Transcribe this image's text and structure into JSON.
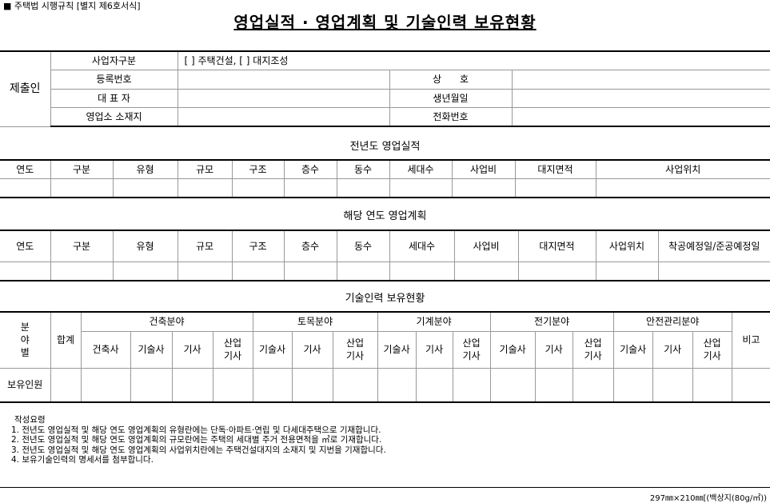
{
  "form_label": "■ 주택법 시행규칙 [별지 제6호서식]",
  "title": "영업실적 · 영업계획 및 기술인력 보유현황",
  "submitter": {
    "label": "제출인",
    "business_type_label": "사업자구분",
    "business_type_value": "[   ] 주택건설, [   ] 대지조성",
    "reg_no_label": "등록번호",
    "trade_name_label": "상      호",
    "representative_label": "대 표 자",
    "birthdate_label": "생년월일",
    "office_label": "영업소 소재지",
    "phone_label": "전화번호"
  },
  "prev_year": {
    "title": "전년도 영업실적",
    "headers": [
      "연도",
      "구분",
      "유형",
      "규모",
      "구조",
      "층수",
      "동수",
      "세대수",
      "사업비",
      "대지면적",
      "사업위치"
    ]
  },
  "plan": {
    "title": "해당 연도 영업계획",
    "headers": [
      "연도",
      "구분",
      "유형",
      "규모",
      "구조",
      "층수",
      "동수",
      "세대수",
      "사업비",
      "대지면적",
      "사업위치",
      "착공예정일/준공예정일"
    ]
  },
  "tech": {
    "title": "기술인력 보유현황",
    "field_label": "분\n야\n별",
    "total_label": "합계",
    "groups": [
      "건축분야",
      "토목분야",
      "기계분야",
      "전기분야",
      "안전관리분야"
    ],
    "sub": [
      "건축사",
      "기술사",
      "기사",
      "산업\n기사",
      "기술사",
      "기사",
      "산업\n기사",
      "기술사",
      "기사",
      "산업\n기사",
      "기술사",
      "기사",
      "산업\n기사",
      "기술사",
      "기사",
      "산업\n기사"
    ],
    "remarks_label": "비고",
    "row_label": "보유인원"
  },
  "notes": {
    "title": "작성요령",
    "items": [
      "1. 전년도 영업실적 및 해당 연도 영업계획의 유형란에는 단독·아파트·연립 및 다세대주택으로 기재합니다.",
      "2. 전년도 영업실적 및 해당 연도 영업계획의 규모란에는 주택의 세대별 주거 전용면적을 ㎡로 기재합니다.",
      "3. 전년도 영업실적 및 해당 연도 영업계획의 사업위치란에는 주택건설대지의 소재지 및 지번을 기재합니다.",
      "4. 보유기술인력의 명세서를 첨부합니다."
    ]
  },
  "footer": "297㎜×210㎜[(백상지(80g/㎡))"
}
